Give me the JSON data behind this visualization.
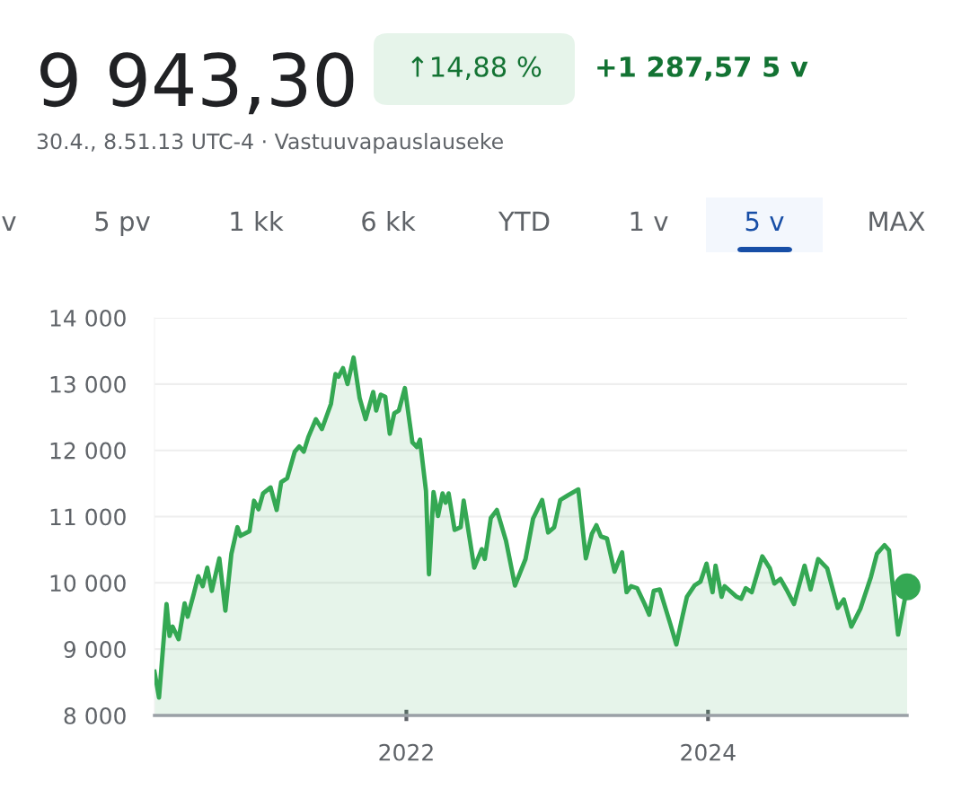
{
  "chart_data": {
    "type": "area",
    "title": "9 943,30",
    "subtitle": "30.4., 8.51.13 UTC-4 · Vastuuvapauslauseke",
    "annotations": [
      "↑14,88 %",
      "+1 287,57 5 v",
      "v",
      "5 pv",
      "1 kk",
      "6 kk",
      "YTD",
      "1 v",
      "5 v",
      "MAX"
    ],
    "series": [
      {
        "color": "#34a853",
        "marker": "none",
        "x": [
          2020.33,
          2020.36,
          2020.41,
          2020.43,
          2020.45,
          2020.49,
          2020.53,
          2020.55,
          2020.59,
          2020.62,
          2020.65,
          2020.68,
          2020.71,
          2020.76,
          2020.8,
          2020.84,
          2020.88,
          2020.9,
          2020.96,
          2020.99,
          2021.02,
          2021.05,
          2021.1,
          2021.14,
          2021.17,
          2021.21,
          2021.26,
          2021.29,
          2021.32,
          2021.35,
          2021.4,
          2021.44,
          2021.5,
          2021.53,
          2021.55,
          2021.58,
          2021.61,
          2021.65,
          2021.69,
          2021.73,
          2021.78,
          2021.8,
          2021.83,
          2021.86,
          2021.89,
          2021.92,
          2021.95,
          2021.99,
          2022.04,
          2022.07,
          2022.09,
          2022.13,
          2022.15,
          2022.18,
          2022.21,
          2022.24,
          2022.26,
          2022.28,
          2022.32,
          2022.36,
          2022.38,
          2022.45,
          2022.5,
          2022.52,
          2022.56,
          2022.6,
          2022.66,
          2022.72,
          2022.79,
          2022.84,
          2022.9,
          2022.94,
          2022.98,
          2023.02,
          2023.07,
          2023.14,
          2023.19,
          2023.23,
          2023.26,
          2023.29,
          2023.33,
          2023.38,
          2023.43,
          2023.46,
          2023.49,
          2023.53,
          2023.58,
          2023.61,
          2023.64,
          2023.68,
          2023.75,
          2023.79,
          2023.83,
          2023.86,
          2023.91,
          2023.95,
          2023.99,
          2024.03,
          2024.05,
          2024.09,
          2024.11,
          2024.19,
          2024.22,
          2024.25,
          2024.29,
          2024.36,
          2024.41,
          2024.44,
          2024.48,
          2024.52,
          2024.57,
          2024.64,
          2024.68,
          2024.73,
          2024.79,
          2024.86,
          2024.9,
          2024.95,
          2025.01,
          2025.08,
          2025.12,
          2025.17,
          2025.2,
          2025.26,
          2025.32
        ],
        "values": [
          8660,
          8270,
          9680,
          9200,
          9340,
          9150,
          9690,
          9490,
          9830,
          10100,
          9950,
          10230,
          9880,
          10370,
          9580,
          10440,
          10840,
          10710,
          10780,
          11240,
          11110,
          11350,
          11440,
          11100,
          11520,
          11580,
          11980,
          12060,
          11980,
          12200,
          12470,
          12320,
          12700,
          13150,
          13110,
          13240,
          13000,
          13400,
          12790,
          12470,
          12880,
          12600,
          12840,
          12810,
          12250,
          12560,
          12600,
          12940,
          12120,
          12050,
          12160,
          11390,
          10130,
          11370,
          11010,
          11350,
          11210,
          11350,
          10800,
          10840,
          11240,
          10230,
          10510,
          10360,
          10980,
          11100,
          10640,
          9960,
          10360,
          10970,
          11250,
          10760,
          10840,
          11250,
          11320,
          11410,
          10370,
          10740,
          10870,
          10700,
          10670,
          10170,
          10460,
          9860,
          9950,
          9920,
          9680,
          9520,
          9880,
          9900,
          9380,
          9070,
          9490,
          9790,
          9960,
          10020,
          10290,
          9860,
          10260,
          9790,
          9950,
          9790,
          9760,
          9920,
          9860,
          10400,
          10220,
          9990,
          10060,
          9900,
          9680,
          10260,
          9900,
          10360,
          10220,
          9620,
          9750,
          9340,
          9610,
          10090,
          10440,
          10570,
          10490,
          9220,
          9940
        ]
      },
      {
        "type": "scatter",
        "color": "#34a853",
        "marker": "circle",
        "x": [
          2025.32
        ],
        "values": [
          9940
        ]
      }
    ],
    "xlim": [
      2020.33,
      2025.32
    ],
    "xticks": [
      2022,
      2024
    ],
    "ylim": [
      8000,
      14000
    ],
    "yticks": [
      {
        "value": 8000,
        "label": "8 000"
      },
      {
        "value": 9000,
        "label": "9 000"
      },
      {
        "value": 10000,
        "label": "10 000"
      },
      {
        "value": 11000,
        "label": "11 000"
      },
      {
        "value": 12000,
        "label": "12 000"
      },
      {
        "value": 13000,
        "label": "13 000"
      },
      {
        "value": 14000,
        "label": "14 000"
      }
    ],
    "grid": "y",
    "legend": false
  }
}
